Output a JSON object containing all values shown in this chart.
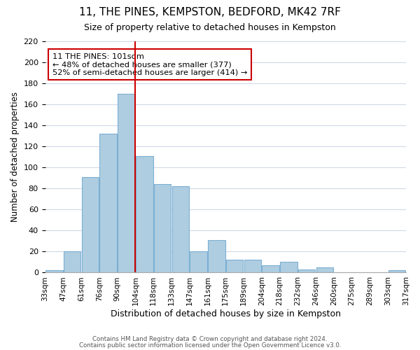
{
  "title": "11, THE PINES, KEMPSTON, BEDFORD, MK42 7RF",
  "subtitle": "Size of property relative to detached houses in Kempston",
  "xlabel": "Distribution of detached houses by size in Kempston",
  "ylabel": "Number of detached properties",
  "bin_labels": [
    "33sqm",
    "47sqm",
    "61sqm",
    "76sqm",
    "90sqm",
    "104sqm",
    "118sqm",
    "133sqm",
    "147sqm",
    "161sqm",
    "175sqm",
    "189sqm",
    "204sqm",
    "218sqm",
    "232sqm",
    "246sqm",
    "260sqm",
    "275sqm",
    "289sqm",
    "303sqm",
    "317sqm"
  ],
  "bar_heights": [
    2,
    20,
    91,
    132,
    170,
    111,
    84,
    82,
    20,
    31,
    12,
    12,
    7,
    10,
    3,
    5,
    0,
    0,
    0,
    2
  ],
  "bar_color": "#aecde0",
  "bar_edge_color": "#7bafd4",
  "vline_color": "#cc0000",
  "vline_x": 4.5,
  "ylim": [
    0,
    220
  ],
  "yticks": [
    0,
    20,
    40,
    60,
    80,
    100,
    120,
    140,
    160,
    180,
    200,
    220
  ],
  "annotation_title": "11 THE PINES: 101sqm",
  "annotation_line1": "← 48% of detached houses are smaller (377)",
  "annotation_line2": "52% of semi-detached houses are larger (414) →",
  "annotation_box_color": "#ffffff",
  "annotation_box_edge": "#cc0000",
  "footer1": "Contains HM Land Registry data © Crown copyright and database right 2024.",
  "footer2": "Contains public sector information licensed under the Open Government Licence v3.0.",
  "background_color": "#ffffff",
  "grid_color": "#d0d8e8"
}
